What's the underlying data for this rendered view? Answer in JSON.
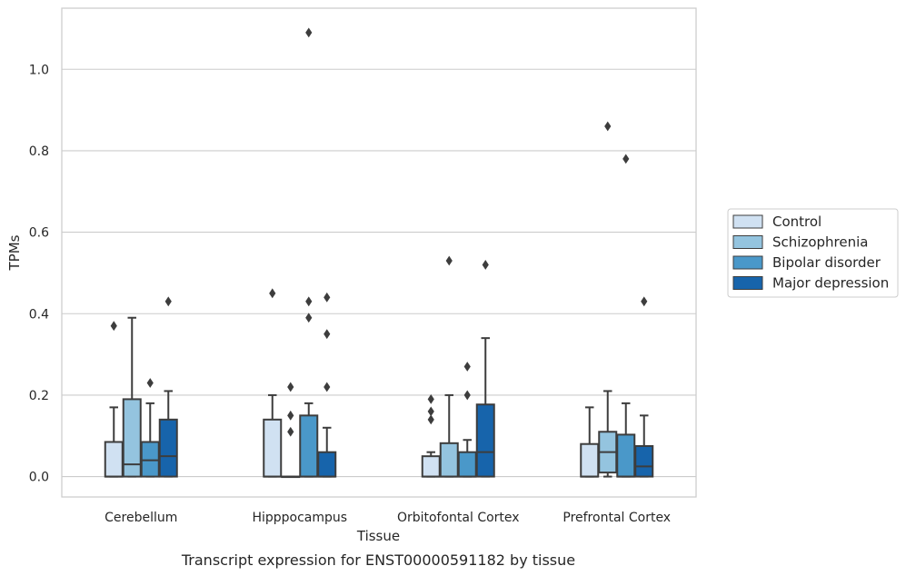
{
  "caption": "Transcript expression for ENST00000591182 by tissue",
  "chart_data": {
    "type": "box",
    "title": "",
    "xlabel": "Tissue",
    "ylabel": "TPMs",
    "ylim": [
      -0.05,
      1.15
    ],
    "yticks": [
      0.0,
      0.2,
      0.4,
      0.6,
      0.8,
      1.0
    ],
    "ytick_labels": [
      "0.0",
      "0.2",
      "0.4",
      "0.6",
      "0.8",
      "1.0"
    ],
    "grid": "horizontal",
    "legend_position": "right",
    "categories": [
      "Cerebellum",
      "Hipppocampus",
      "Orbitofontal Cortex",
      "Prefrontal Cortex"
    ],
    "series": [
      {
        "name": "Control",
        "color": "#d0e1f2",
        "boxes": [
          {
            "whislo": 0.0,
            "q1": 0.0,
            "med": 0.0,
            "q3": 0.085,
            "whishi": 0.17,
            "fliers": [
              0.37
            ]
          },
          {
            "whislo": 0.0,
            "q1": 0.0,
            "med": 0.0,
            "q3": 0.14,
            "whishi": 0.2,
            "fliers": [
              0.45
            ]
          },
          {
            "whislo": 0.0,
            "q1": 0.0,
            "med": 0.0,
            "q3": 0.05,
            "whishi": 0.06,
            "fliers": [
              0.14,
              0.16,
              0.19
            ]
          },
          {
            "whislo": 0.0,
            "q1": 0.0,
            "med": 0.0,
            "q3": 0.08,
            "whishi": 0.17,
            "fliers": []
          }
        ]
      },
      {
        "name": "Schizophrenia",
        "color": "#94c4df",
        "boxes": [
          {
            "whislo": 0.0,
            "q1": 0.0,
            "med": 0.03,
            "q3": 0.19,
            "whishi": 0.39,
            "fliers": []
          },
          {
            "whislo": 0.0,
            "q1": 0.0,
            "med": 0.0,
            "q3": 0.0,
            "whishi": 0.0,
            "fliers": [
              0.11,
              0.15,
              0.22
            ]
          },
          {
            "whislo": 0.0,
            "q1": 0.0,
            "med": 0.0,
            "q3": 0.082,
            "whishi": 0.2,
            "fliers": [
              0.53
            ]
          },
          {
            "whislo": 0.0,
            "q1": 0.01,
            "med": 0.06,
            "q3": 0.11,
            "whishi": 0.21,
            "fliers": [
              0.86
            ]
          }
        ]
      },
      {
        "name": "Bipolar disorder",
        "color": "#4a98c9",
        "boxes": [
          {
            "whislo": 0.0,
            "q1": 0.0,
            "med": 0.04,
            "q3": 0.085,
            "whishi": 0.18,
            "fliers": [
              0.23
            ]
          },
          {
            "whislo": 0.0,
            "q1": 0.0,
            "med": 0.0,
            "q3": 0.15,
            "whishi": 0.18,
            "fliers": [
              0.39,
              0.43,
              1.09
            ]
          },
          {
            "whislo": 0.0,
            "q1": 0.0,
            "med": 0.0,
            "q3": 0.06,
            "whishi": 0.09,
            "fliers": [
              0.2,
              0.27
            ]
          },
          {
            "whislo": 0.0,
            "q1": 0.0,
            "med": 0.0,
            "q3": 0.103,
            "whishi": 0.18,
            "fliers": [
              0.78
            ]
          }
        ]
      },
      {
        "name": "Major depression",
        "color": "#1764ab",
        "boxes": [
          {
            "whislo": 0.0,
            "q1": 0.0,
            "med": 0.05,
            "q3": 0.14,
            "whishi": 0.21,
            "fliers": [
              0.43
            ]
          },
          {
            "whislo": 0.0,
            "q1": 0.0,
            "med": 0.0,
            "q3": 0.06,
            "whishi": 0.12,
            "fliers": [
              0.22,
              0.35,
              0.44
            ]
          },
          {
            "whislo": 0.0,
            "q1": 0.0,
            "med": 0.06,
            "q3": 0.177,
            "whishi": 0.34,
            "fliers": [
              0.52
            ]
          },
          {
            "whislo": 0.0,
            "q1": 0.0,
            "med": 0.025,
            "q3": 0.075,
            "whishi": 0.15,
            "fliers": [
              0.43
            ]
          }
        ]
      }
    ]
  }
}
